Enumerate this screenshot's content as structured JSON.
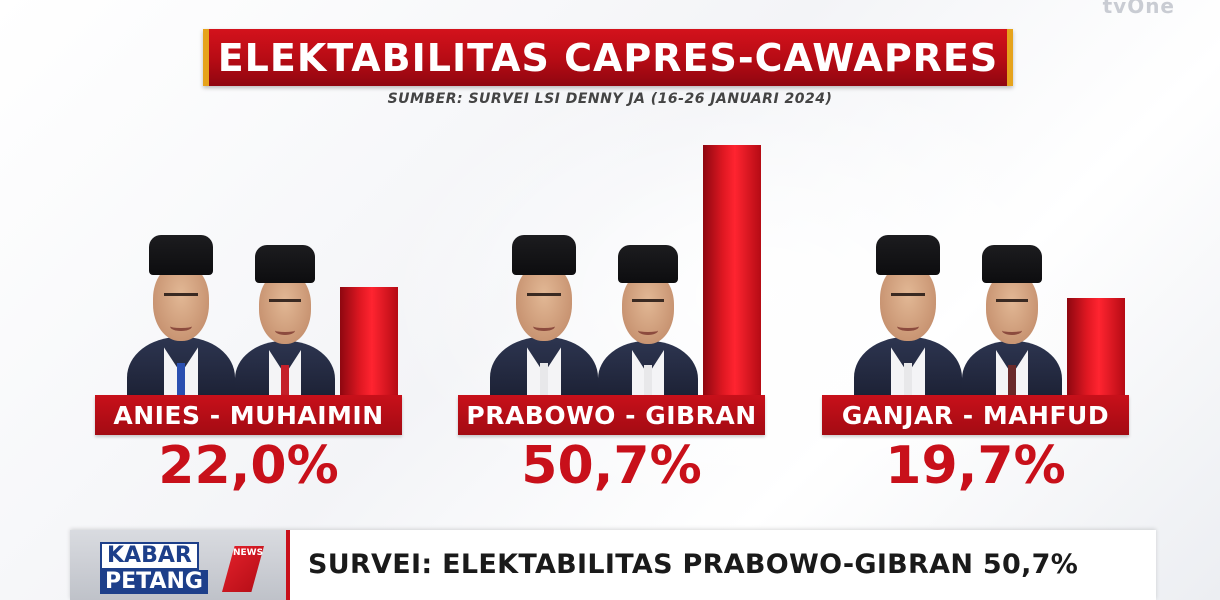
{
  "broadcaster": "tvOne",
  "chart_data": {
    "type": "bar",
    "title": "ELEKTABILITAS CAPRES-CAWAPRES",
    "subtitle": "SUMBER: SURVEI LSI DENNY JA (16-26 JANUARI 2024)",
    "categories": [
      "ANIES - MUHAIMIN",
      "PRABOWO - GIBRAN",
      "GANJAR - MAHFUD"
    ],
    "values": [
      22.0,
      50.7,
      19.7
    ],
    "value_labels": [
      "22,0%",
      "50,7%",
      "19,7%"
    ],
    "ylim": [
      0,
      50.7
    ],
    "grid": false,
    "bar_color": "#d8141e",
    "label_color": "#c8101a"
  },
  "ticker": {
    "brand_top": "KABAR",
    "brand_bottom": "PETANG",
    "brand_badge": "NEWS",
    "headline": "SURVEI: ELEKTABILITAS PRABOWO-GIBRAN 50,7%"
  }
}
